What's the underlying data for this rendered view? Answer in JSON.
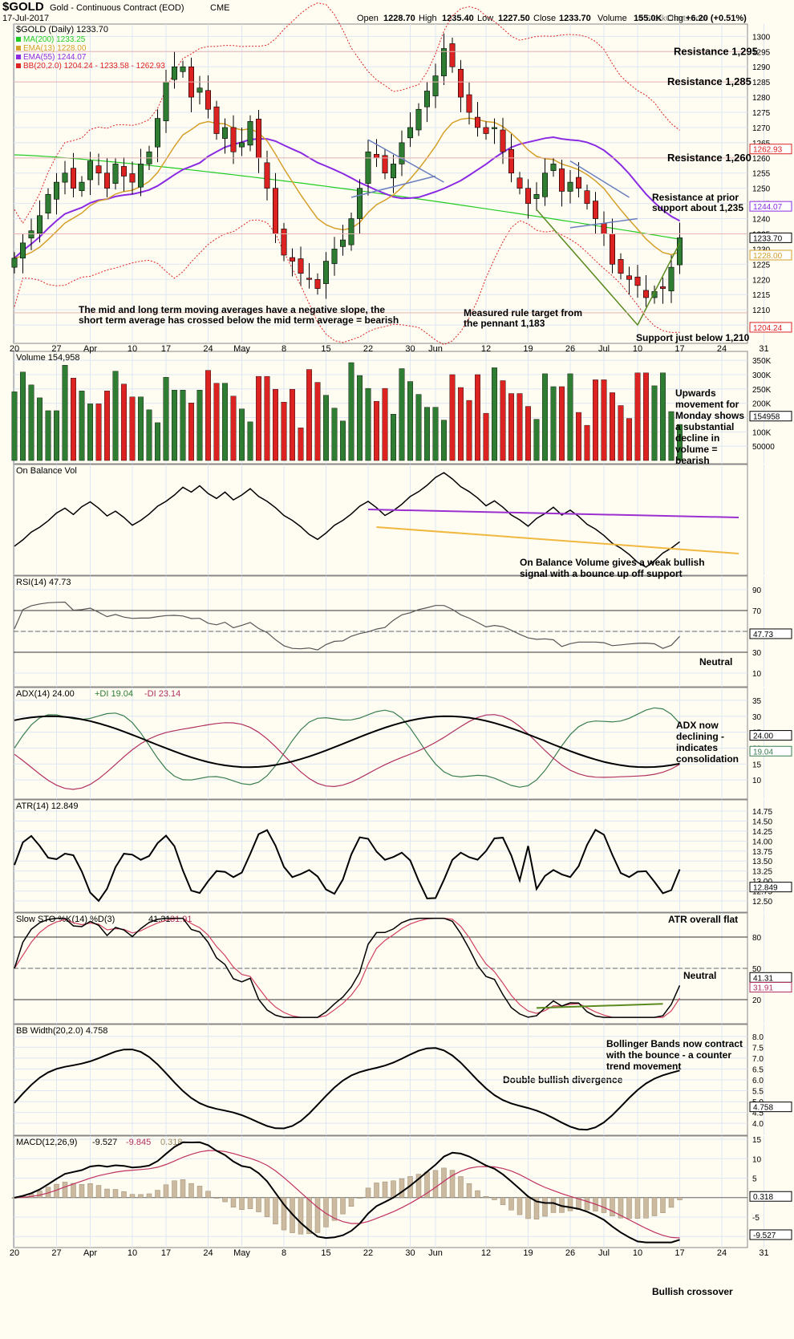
{
  "header": {
    "symbol": "$GOLD",
    "name": "Gold - Continuous Contract (EOD)",
    "exchange": "CME",
    "date": "17-Jul-2017",
    "open_label": "Open",
    "open": "1228.70",
    "high_label": "High",
    "high": "1235.40",
    "low_label": "Low",
    "low": "1227.50",
    "close_label": "Close",
    "close": "1233.70",
    "volume_label": "Volume",
    "volume": "155.0K",
    "chg_label": "Chg",
    "chg": "+6.20 (+0.51%)",
    "watermark": "© StockCharts.com"
  },
  "colors": {
    "up": "#2e7d32",
    "down": "#dd2222",
    "ma200": "#22cc22",
    "ema13": "#d4a02a",
    "ema55": "#8a2be2",
    "bb": "#dd2222",
    "trend": "#6b7fbf",
    "green": "#5a8a20",
    "obv_purple": "#9b30d0",
    "obv_orange": "#f0b840"
  },
  "x_axis": {
    "labels": [
      {
        "text": "20",
        "i": 0
      },
      {
        "text": "27",
        "i": 5
      },
      {
        "text": "Apr",
        "i": 9
      },
      {
        "text": "10",
        "i": 14
      },
      {
        "text": "17",
        "i": 18
      },
      {
        "text": "24",
        "i": 23
      },
      {
        "text": "May",
        "i": 27
      },
      {
        "text": "8",
        "i": 32
      },
      {
        "text": "15",
        "i": 37
      },
      {
        "text": "22",
        "i": 42
      },
      {
        "text": "30",
        "i": 47
      },
      {
        "text": "Jun",
        "i": 50
      },
      {
        "text": "12",
        "i": 56
      },
      {
        "text": "19",
        "i": 61
      },
      {
        "text": "26",
        "i": 66
      },
      {
        "text": "Jul",
        "i": 70
      },
      {
        "text": "10",
        "i": 74
      },
      {
        "text": "17",
        "i": 79
      },
      {
        "text": "24",
        "i": 84
      },
      {
        "text": "31",
        "i": 89
      }
    ]
  },
  "chart_data": [
    {
      "type": "candlestick",
      "title": "$GOLD (Daily) 1233.70",
      "legend": [
        "MA(200) 1233.25",
        "EMA(13) 1228.00",
        "EMA(55) 1244.07",
        "BB(20,2.0) 1204.24 - 1233.58 - 1262.93"
      ],
      "ylim": [
        1200,
        1303
      ],
      "yticks": [
        1205,
        1210,
        1215,
        1220,
        1225,
        1230,
        1235,
        1240,
        1245,
        1250,
        1255,
        1260,
        1265,
        1270,
        1275,
        1280,
        1285,
        1290,
        1295,
        1300
      ],
      "value_tags": [
        {
          "text": "1262.93",
          "v": 1262.93,
          "color": "#dd2222"
        },
        {
          "text": "1244.07",
          "v": 1244.07,
          "color": "#8a2be2"
        },
        {
          "text": "1233.70",
          "v": 1233.7,
          "color": "#000000"
        },
        {
          "text": "1228.00",
          "v": 1228.0,
          "color": "#d4a02a"
        },
        {
          "text": "1204.24",
          "v": 1204.24,
          "color": "#dd2222"
        }
      ],
      "close": [
        1227,
        1232,
        1236,
        1241,
        1248,
        1252,
        1255,
        1250,
        1252,
        1259,
        1255,
        1250,
        1258,
        1254,
        1252,
        1258,
        1262,
        1273,
        1285,
        1290,
        1290,
        1280,
        1283,
        1276,
        1268,
        1270,
        1262,
        1265,
        1272,
        1260,
        1250,
        1235,
        1228,
        1226,
        1222,
        1220,
        1217,
        1226,
        1230,
        1233,
        1240,
        1250,
        1262,
        1260,
        1255,
        1258,
        1265,
        1270,
        1276,
        1282,
        1287,
        1296,
        1290,
        1280,
        1275,
        1270,
        1268,
        1270,
        1262,
        1255,
        1250,
        1245,
        1248,
        1255,
        1258,
        1249,
        1252,
        1250,
        1245,
        1240,
        1235,
        1225,
        1222,
        1220,
        1218,
        1214,
        1216,
        1217,
        1224,
        1233.7
      ],
      "ma200_ends": [
        1261,
        1233.25
      ],
      "annotations": [
        {
          "text": "Resistance 1,295",
          "v": 1295
        },
        {
          "text": "Resistance 1,285",
          "v": 1285
        },
        {
          "text": "Resistance 1,260",
          "v": 1260
        },
        {
          "text": "Resistance at prior",
          "v": 1247
        },
        {
          "text": "support about 1,235",
          "v": 1242
        },
        {
          "text": "The mid and long term moving averages have a negative slope, the",
          "v": 1210
        },
        {
          "text": "short term average has crossed below the mid term average = bearish",
          "v": 1205
        },
        {
          "text": "Measured rule target from",
          "v": 1209
        },
        {
          "text": "the pennant 1,183",
          "v": 1204
        },
        {
          "text": "Support just below 1,210",
          "v": 1204
        }
      ]
    },
    {
      "type": "bar",
      "title": "Volume 154,958",
      "yticks_text": [
        "350K",
        "300K",
        "250K",
        "200K",
        "150K",
        "100K",
        "50000"
      ],
      "yticks": [
        350000,
        300000,
        250000,
        200000,
        150000,
        100000,
        50000
      ],
      "ylim": [
        0,
        370000
      ],
      "value_tag": "154958",
      "annotation": [
        "Upwards",
        "movement for",
        "Monday shows",
        "a substantial",
        "decline in",
        "volume =",
        "bearish"
      ]
    },
    {
      "type": "line",
      "title": "On Balance Vol",
      "annotation": [
        "On Balance Volume gives a weak bullish",
        "signal with a bounce up off support"
      ]
    },
    {
      "type": "line",
      "title": "RSI(14) 47.73",
      "ylim": [
        0,
        100
      ],
      "yticks": [
        10,
        30,
        50,
        70,
        90
      ],
      "value_tag": "47.73",
      "annotation": [
        "Neutral"
      ]
    },
    {
      "type": "line",
      "title": "ADX(14) 24.00",
      "legend": [
        "+DI 19.04",
        "-DI 23.14"
      ],
      "ylim": [
        5,
        38
      ],
      "yticks": [
        10,
        15,
        20,
        25,
        30,
        35
      ],
      "value_tags": [
        "24.00",
        "19.04"
      ],
      "annotation": [
        "ADX now",
        "declining -",
        "indicates",
        "consolidation"
      ]
    },
    {
      "type": "line",
      "title": "ATR(14) 12.849",
      "ylim": [
        12.3,
        14.95
      ],
      "yticks": [
        12.5,
        12.75,
        13.0,
        13.25,
        13.5,
        13.75,
        14.0,
        14.25,
        14.5,
        14.75
      ],
      "yticks_text": [
        "12.50",
        "12.75",
        "13.00",
        "13.25",
        "13.50",
        "13.75",
        "14.00",
        "14.25",
        "14.50",
        "14.75"
      ],
      "value_tag": "12.849",
      "annotation": [
        "ATR overall flat"
      ]
    },
    {
      "type": "line",
      "title": "Slow STO %K(14) %D(3)",
      "legend": [
        "41.31",
        "31.91"
      ],
      "ylim": [
        0,
        100
      ],
      "yticks": [
        20,
        50,
        80
      ],
      "value_tags": [
        "41.31",
        "31.91"
      ],
      "annotation": [
        "Neutral",
        "Double bullish divergence"
      ]
    },
    {
      "type": "line",
      "title": "BB Width(20,2.0) 4.758",
      "ylim": [
        3.6,
        8.4
      ],
      "yticks": [
        4.0,
        4.5,
        5.0,
        5.5,
        6.0,
        6.5,
        7.0,
        7.5,
        8.0
      ],
      "yticks_text": [
        "4.0",
        "4.5",
        "5.0",
        "5.5",
        "6.0",
        "6.5",
        "7.0",
        "7.5",
        "8.0"
      ],
      "value_tag": "4.758",
      "annotation": [
        "Bollinger Bands now contract",
        "with the bounce - a counter",
        "trend movement"
      ]
    },
    {
      "type": "line",
      "title": "MACD(12,26,9)",
      "legend": [
        "-9.527",
        "-9.845",
        "0.318"
      ],
      "ylim": [
        -12,
        15
      ],
      "yticks": [
        -10,
        -5,
        0,
        5,
        10,
        15
      ],
      "value_tags": [
        "0.318",
        "-9.527"
      ],
      "annotation": [
        "Bullish crossover"
      ]
    }
  ]
}
